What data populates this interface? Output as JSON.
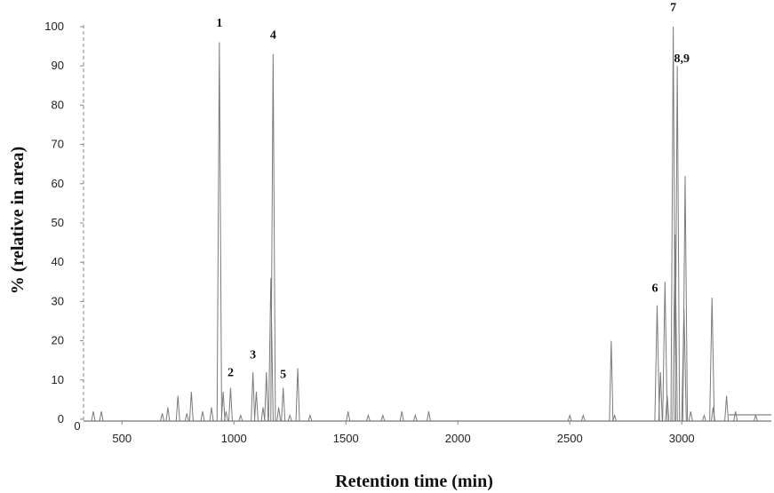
{
  "chart_data": {
    "type": "line",
    "title": "",
    "xlabel": "Retention time (min)",
    "ylabel": "% (relative in area)",
    "xlim": [
      350,
      3420
    ],
    "ylim": [
      0,
      100
    ],
    "x_ticks": [
      500,
      1000,
      1500,
      2000,
      2500,
      3000
    ],
    "x_origin_label": "0",
    "y_ticks": [
      0,
      10,
      20,
      30,
      40,
      50,
      60,
      70,
      80,
      90,
      100
    ],
    "grid": false,
    "legend": "none",
    "line_color": "#7a7a7a",
    "peaks": [
      {
        "x": 372,
        "y": 2
      },
      {
        "x": 408,
        "y": 2
      },
      {
        "x": 680,
        "y": 1.5
      },
      {
        "x": 705,
        "y": 3
      },
      {
        "x": 750,
        "y": 6
      },
      {
        "x": 790,
        "y": 1.5
      },
      {
        "x": 810,
        "y": 7
      },
      {
        "x": 860,
        "y": 2
      },
      {
        "x": 900,
        "y": 3
      },
      {
        "x": 935,
        "y": 96
      },
      {
        "x": 952,
        "y": 7
      },
      {
        "x": 965,
        "y": 2
      },
      {
        "x": 985,
        "y": 8
      },
      {
        "x": 1030,
        "y": 1
      },
      {
        "x": 1085,
        "y": 12
      },
      {
        "x": 1100,
        "y": 7
      },
      {
        "x": 1130,
        "y": 3
      },
      {
        "x": 1145,
        "y": 12
      },
      {
        "x": 1165,
        "y": 36
      },
      {
        "x": 1175,
        "y": 93
      },
      {
        "x": 1200,
        "y": 3
      },
      {
        "x": 1220,
        "y": 8
      },
      {
        "x": 1250,
        "y": 1
      },
      {
        "x": 1285,
        "y": 13
      },
      {
        "x": 1340,
        "y": 1
      },
      {
        "x": 1510,
        "y": 2
      },
      {
        "x": 1600,
        "y": 1
      },
      {
        "x": 1665,
        "y": 1
      },
      {
        "x": 1750,
        "y": 2
      },
      {
        "x": 1810,
        "y": 1
      },
      {
        "x": 1870,
        "y": 2
      },
      {
        "x": 2500,
        "y": 1
      },
      {
        "x": 2560,
        "y": 1
      },
      {
        "x": 2685,
        "y": 20
      },
      {
        "x": 2700,
        "y": 1
      },
      {
        "x": 2890,
        "y": 29
      },
      {
        "x": 2905,
        "y": 12
      },
      {
        "x": 2925,
        "y": 35
      },
      {
        "x": 2935,
        "y": 6
      },
      {
        "x": 2962,
        "y": 100
      },
      {
        "x": 2970,
        "y": 47
      },
      {
        "x": 2980,
        "y": 90
      },
      {
        "x": 3010,
        "y": 28
      },
      {
        "x": 3015,
        "y": 62
      },
      {
        "x": 3040,
        "y": 2
      },
      {
        "x": 3100,
        "y": 1
      },
      {
        "x": 3135,
        "y": 31
      },
      {
        "x": 3140,
        "y": 3
      },
      {
        "x": 3200,
        "y": 6
      },
      {
        "x": 3240,
        "y": 2
      },
      {
        "x": 3330,
        "y": 1
      }
    ],
    "annotations": [
      {
        "label": "1",
        "x": 935,
        "y": 100
      },
      {
        "label": "2",
        "x": 985,
        "y": 11
      },
      {
        "label": "3",
        "x": 1085,
        "y": 15.5
      },
      {
        "label": "4",
        "x": 1175,
        "y": 97
      },
      {
        "label": "5",
        "x": 1220,
        "y": 10.5
      },
      {
        "label": "6",
        "x": 2880,
        "y": 32.5
      },
      {
        "label": "7",
        "x": 2962,
        "y": 104
      },
      {
        "label": "8,9",
        "x": 3000,
        "y": 91
      }
    ]
  }
}
